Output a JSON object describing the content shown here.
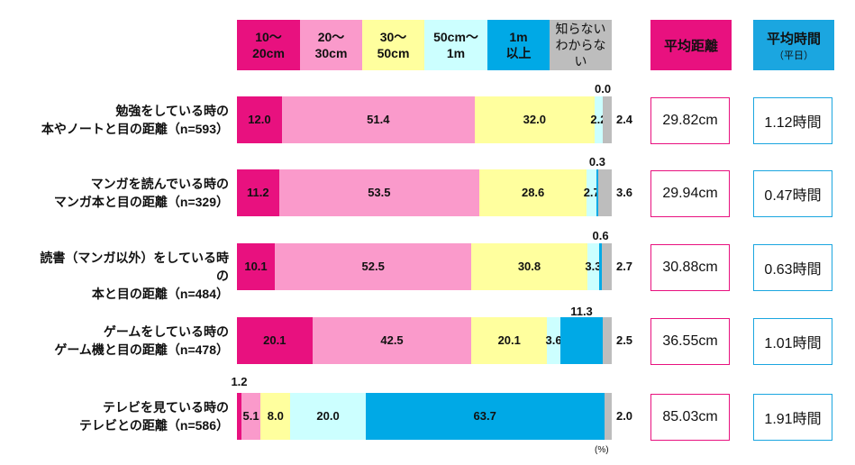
{
  "chart_data": {
    "type": "bar",
    "stacked": true,
    "orientation": "horizontal",
    "unit": "(%)",
    "xlim": [
      0,
      100
    ],
    "legend_position": "top",
    "categories": [
      "10〜\n20cm",
      "20〜\n30cm",
      "30〜\n50cm",
      "50cm〜\n1m",
      "1m\n以上",
      "知らない\nわからない"
    ],
    "colors": [
      "#E8117F",
      "#FA9ACB",
      "#FFFF9E",
      "#CCFFFF",
      "#00A9E6",
      "#BDBDBD"
    ],
    "rows": [
      {
        "label": "勉強をしている時の\n本やノートと目の距離（n=593）",
        "values": [
          12.0,
          51.4,
          32.0,
          2.2,
          0.0,
          2.4
        ],
        "labels": [
          "12.0",
          "51.4",
          "32.0",
          "2.2",
          "0.0",
          "2.4"
        ]
      },
      {
        "label": "マンガを読んでいる時の\nマンガ本と目の距離（n=329）",
        "values": [
          11.2,
          53.5,
          28.6,
          2.7,
          0.3,
          3.6
        ],
        "labels": [
          "11.2",
          "53.5",
          "28.6",
          "2.7",
          "0.3",
          "3.6"
        ]
      },
      {
        "label": "読書（マンガ以外）をしている時の\n本と目の距離（n=484）",
        "values": [
          10.1,
          52.5,
          30.8,
          3.3,
          0.6,
          2.7
        ],
        "labels": [
          "10.1",
          "52.5",
          "30.8",
          "3.3",
          "0.6",
          "2.7"
        ]
      },
      {
        "label": "ゲームをしている時の\nゲーム機と目の距離（n=478）",
        "values": [
          20.1,
          42.5,
          20.1,
          3.6,
          11.3,
          2.5
        ],
        "labels": [
          "20.1",
          "42.5",
          "20.1",
          "3.6",
          "11.3",
          "2.5"
        ]
      },
      {
        "label": "テレビを見ている時の\nテレビとの距離（n=586）",
        "values": [
          1.2,
          5.1,
          8.0,
          20.0,
          63.7,
          2.0
        ],
        "labels": [
          "1.2",
          "5.1",
          "8.0",
          "20.0",
          "63.7",
          "2.0"
        ]
      }
    ]
  },
  "avg_distance": {
    "header": "平均距離",
    "color": "#E8117F",
    "values": [
      "29.82cm",
      "29.94cm",
      "30.88cm",
      "36.55cm",
      "85.03cm"
    ]
  },
  "avg_time": {
    "header": "平均時間",
    "subheader": "（平日）",
    "color": "#1BA6E0",
    "values": [
      "1.12時間",
      "0.47時間",
      "0.63時間",
      "1.01時間",
      "1.91時間"
    ]
  }
}
